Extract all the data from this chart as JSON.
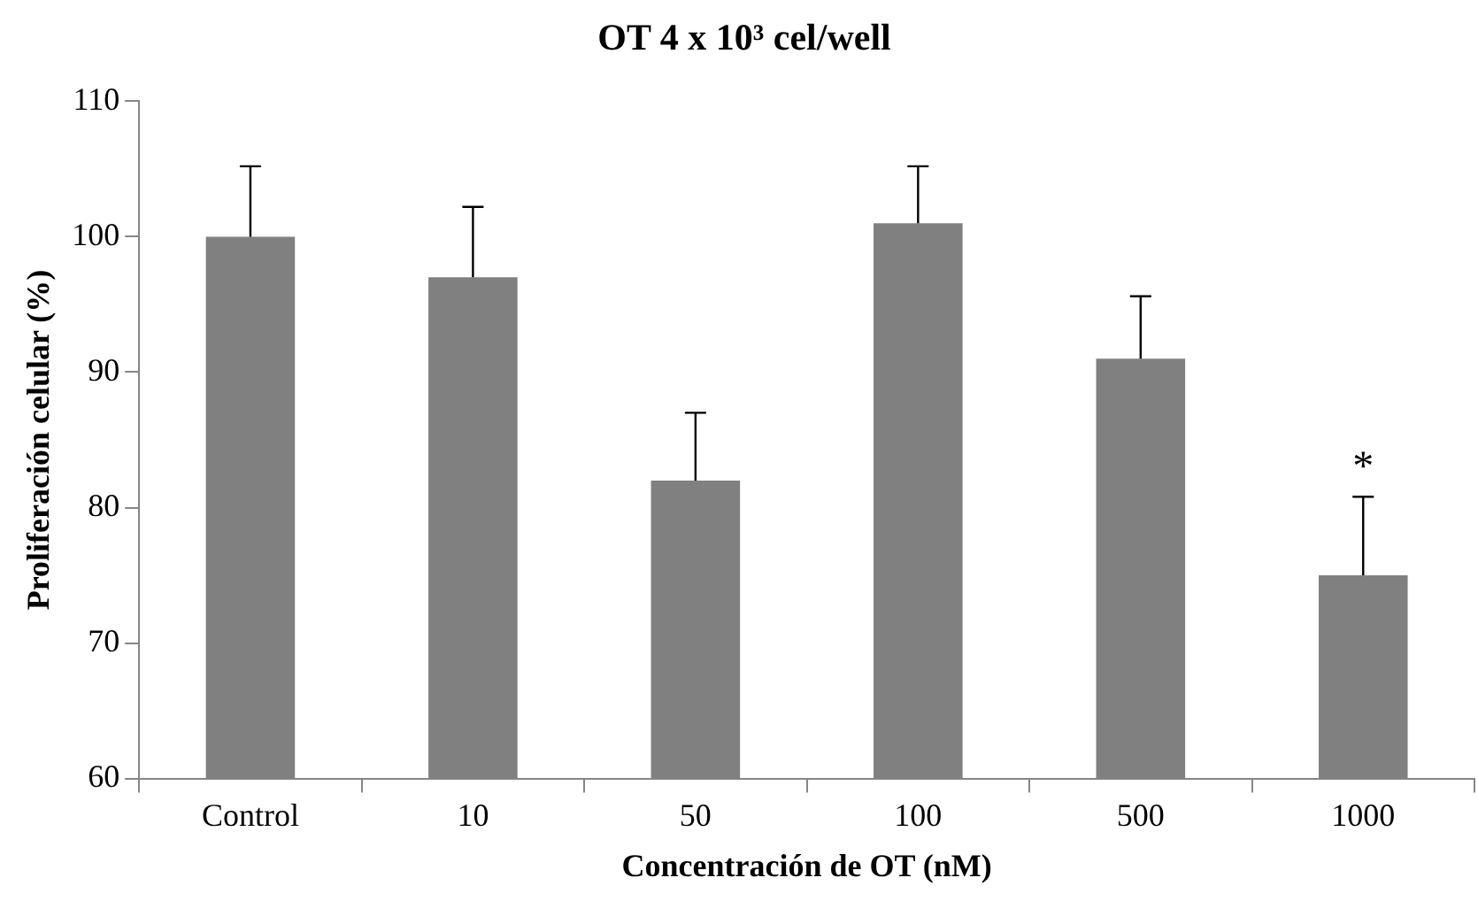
{
  "chart_data": {
    "type": "bar",
    "title": "OT 4 x 10³ cel/well",
    "xlabel": "Concentración de OT (nM)",
    "ylabel": "Proliferación celular (%)",
    "categories": [
      "Control",
      "10",
      "50",
      "100",
      "500",
      "1000"
    ],
    "values": [
      100,
      97,
      82,
      101,
      91,
      75
    ],
    "errors": [
      [
        100,
        105.2
      ],
      [
        97,
        102.2
      ],
      [
        82,
        87
      ],
      [
        101,
        105.2
      ],
      [
        91,
        95.6
      ],
      [
        75,
        80.8
      ]
    ],
    "color": "#808080",
    "ylim": [
      60,
      110
    ],
    "yticks": [
      60,
      70,
      80,
      90,
      100,
      110
    ],
    "grid": false,
    "legend": false,
    "annotations": [
      {
        "text": "*",
        "x": "1000",
        "y": 80.8
      }
    ]
  }
}
